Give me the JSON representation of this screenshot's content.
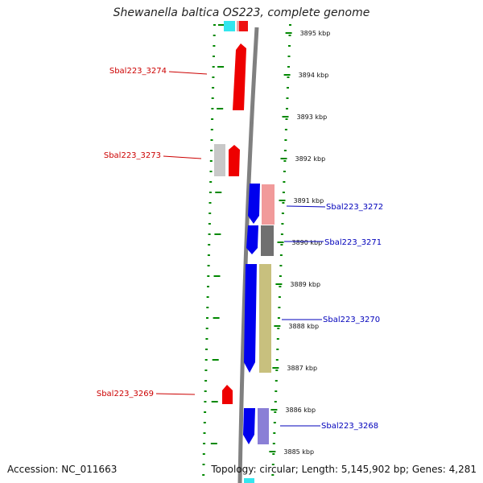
{
  "title": "Shewanella baltica OS223, complete genome",
  "accession": "Accession: NC_011663",
  "topology": "Topology: circular; Length: 5,145,902 bp; Genes: 4,281",
  "colors": {
    "forward_gene": "#ff0000",
    "reverse_gene": "#0000ff",
    "forward_label": "#cc0000",
    "reverse_label": "#0000bb",
    "tick": "#008800",
    "backbone": "#808080"
  },
  "ticks": [
    "3895 kbp",
    "3894 kbp",
    "3893 kbp",
    "3892 kbp",
    "3891 kbp",
    "3890 kbp",
    "3889 kbp",
    "3888 kbp",
    "3887 kbp",
    "3886 kbp",
    "3885 kbp"
  ],
  "genes": [
    {
      "name": "Sbal223_3274",
      "strand": "forward"
    },
    {
      "name": "Sbal223_3273",
      "strand": "forward"
    },
    {
      "name": "Sbal223_3272",
      "strand": "reverse"
    },
    {
      "name": "Sbal223_3271",
      "strand": "reverse"
    },
    {
      "name": "Sbal223_3270",
      "strand": "reverse"
    },
    {
      "name": "Sbal223_3269",
      "strand": "forward"
    },
    {
      "name": "Sbal223_3268",
      "strand": "reverse"
    }
  ]
}
